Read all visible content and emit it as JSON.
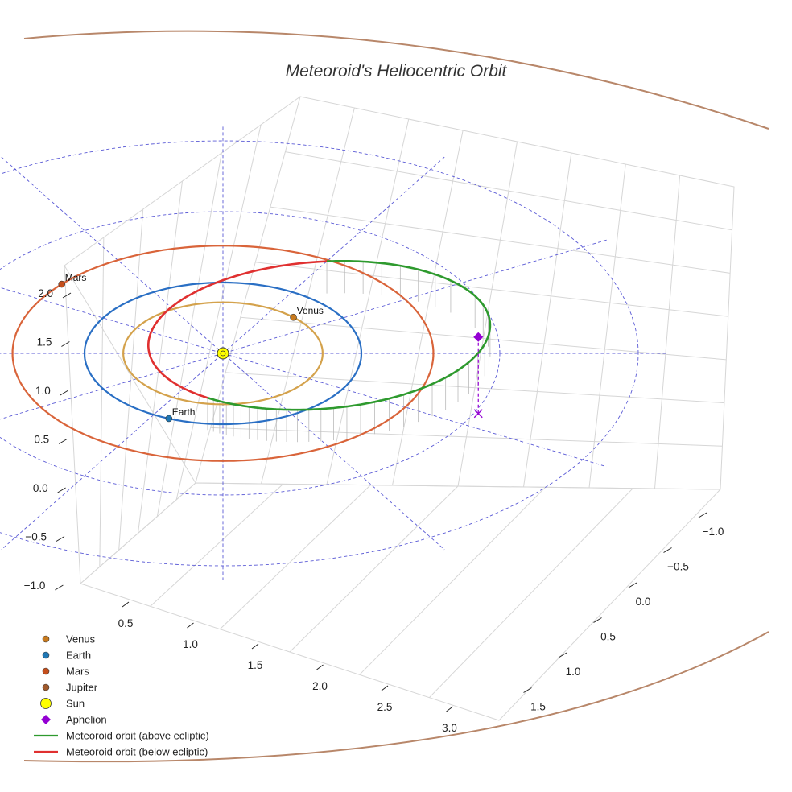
{
  "chart_data": {
    "type": "3d-orbit",
    "title": "Meteoroid's Heliocentric Orbit",
    "axes": {
      "x_ticks": [
        "0.5",
        "1.0",
        "1.5",
        "2.0",
        "2.5",
        "3.0"
      ],
      "y_ticks": [
        "−1.0",
        "−0.5",
        "0.0",
        "0.5",
        "1.0",
        "1.5"
      ],
      "z_ticks": [
        "−1.0",
        "−0.5",
        "0.0",
        "0.5",
        "1.0",
        "1.5",
        "2.0"
      ],
      "grid": true
    },
    "orbits": [
      {
        "name": "Venus",
        "a": 0.72,
        "color": "#d4a24c"
      },
      {
        "name": "Earth",
        "a": 1.0,
        "color": "#2a6fc4"
      },
      {
        "name": "Mars",
        "a": 1.52,
        "color": "#d9643a"
      }
    ],
    "bodies": [
      {
        "name": "Venus",
        "label": "Venus",
        "color": "#c87a1e",
        "angle_deg": 45
      },
      {
        "name": "Earth",
        "label": "Earth",
        "color": "#1f77b4",
        "angle_deg": 247
      },
      {
        "name": "Mars",
        "label": "Mars",
        "color": "#c44e1c",
        "angle_deg": 140
      }
    ],
    "meteoroid": {
      "perihelion_au": 0.52,
      "aphelion_au": 2.0,
      "color_above": "#2e9a2e",
      "color_below": "#e03030",
      "aphelion_color": "#9400d3",
      "aphelion_height_au": 0.45
    },
    "legend": {
      "placement": "bottom-left",
      "items": [
        {
          "label": "Venus",
          "marker": "circle",
          "color": "#c87a1e"
        },
        {
          "label": "Earth",
          "marker": "circle",
          "color": "#1f77b4"
        },
        {
          "label": "Mars",
          "marker": "circle",
          "color": "#c44e1c"
        },
        {
          "label": "Jupiter",
          "marker": "circle",
          "color": "#a05a2c"
        },
        {
          "label": "Sun",
          "marker": "circle-large",
          "color": "#ffff00"
        },
        {
          "label": "Aphelion",
          "marker": "diamond",
          "color": "#9400d3"
        },
        {
          "label": "Meteoroid orbit (above ecliptic)",
          "marker": "line",
          "color": "#2e9a2e"
        },
        {
          "label": "Meteoroid orbit (below ecliptic)",
          "marker": "line",
          "color": "#e03030"
        }
      ]
    },
    "jupiter_orbit_color": "#b8876a"
  }
}
